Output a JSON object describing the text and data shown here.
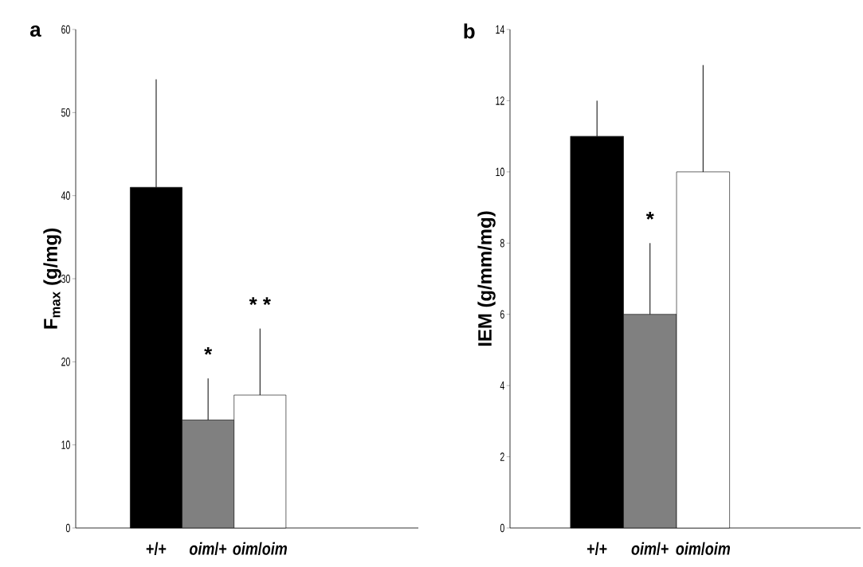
{
  "chart_data": [
    {
      "type": "bar",
      "title": "a",
      "ylabel": "F$_{max}$  (g/mg)",
      "categories": [
        "+/+",
        "*oim*/+",
        "*oim*/*oim*"
      ],
      "values": [
        41,
        13,
        16
      ],
      "errors": [
        [
          41,
          54
        ],
        [
          13,
          18
        ],
        [
          16,
          24
        ]
      ],
      "colors": [
        "#000000",
        "#808080",
        "#ffffff"
      ],
      "ylim": [
        0,
        60
      ],
      "yticks": [
        0,
        10,
        20,
        30,
        40,
        50,
        60
      ],
      "grid": false,
      "annotations": [
        {
          "text": "*",
          "x": "*oim*/+",
          "y": 18
        },
        {
          "text": "* *",
          "x": "*oim*/*oim*",
          "y": 24
        }
      ]
    },
    {
      "type": "bar",
      "title": "b",
      "ylabel": "IEM  (g/mm/mg)",
      "categories": [
        "+/+",
        "*oim*/+",
        "*oim*/*oim*"
      ],
      "values": [
        11,
        6,
        10
      ],
      "errors": [
        [
          11,
          12
        ],
        [
          6,
          8
        ],
        [
          10,
          13
        ]
      ],
      "colors": [
        "#000000",
        "#808080",
        "#ffffff"
      ],
      "ylim": [
        0,
        14
      ],
      "yticks": [
        0,
        2,
        4,
        6,
        8,
        10,
        12,
        14
      ],
      "grid": false,
      "annotations": [
        {
          "text": "*",
          "x": "*oim*/+",
          "y": 8
        }
      ]
    }
  ]
}
